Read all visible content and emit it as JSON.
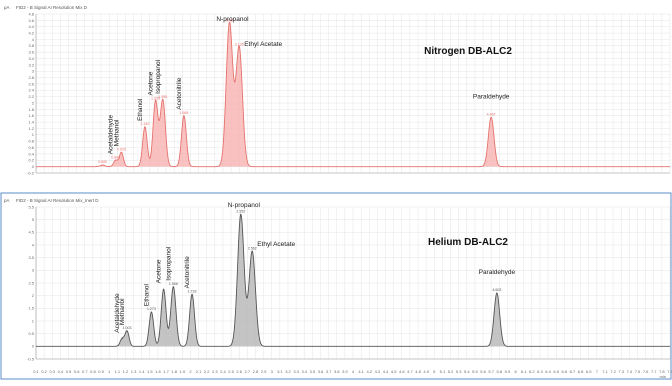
{
  "chart_data": [
    {
      "type": "line",
      "title": "Nitrogen DB-ALC2",
      "header": "FID2 - B Signal AI Resolution Mix D",
      "unit_label": "pA",
      "color": "#e6726e",
      "fill": "#f7b3b1",
      "xlim": [
        0.1,
        7.9
      ],
      "ylim": [
        -0.2,
        4.8
      ],
      "yticks": [
        "-0.2",
        "0",
        "0.2",
        "0.4",
        "0.6",
        "0.8",
        "1",
        "1.2",
        "1.4",
        "1.6",
        "1.8",
        "2",
        "2.2",
        "2.4",
        "2.6",
        "2.8",
        "3",
        "3.2",
        "3.4",
        "3.6",
        "3.8",
        "4",
        "4.2",
        "4.4",
        "4.6",
        "4.8"
      ],
      "peaks": [
        {
          "name": "",
          "rt": 0.92,
          "height": 0.05,
          "width": 0.03,
          "value_label": "0.600"
        },
        {
          "name": "Acetaldehyde",
          "rt": 1.08,
          "height": 0.2,
          "width": 0.025,
          "value_label": "0.849"
        },
        {
          "name": "Methanol",
          "rt": 1.15,
          "height": 0.45,
          "width": 0.025,
          "value_label": "0.929"
        },
        {
          "name": "Ethanol",
          "rt": 1.44,
          "height": 1.25,
          "width": 0.028,
          "value_label": "1.142"
        },
        {
          "name": "Acetone",
          "rt": 1.57,
          "height": 2.05,
          "width": 0.03,
          "value_label": "1.295"
        },
        {
          "name": "Isopropanol",
          "rt": 1.66,
          "height": 2.1,
          "width": 0.032,
          "value_label": "1.355"
        },
        {
          "name": "Acetonitrile",
          "rt": 1.92,
          "height": 1.6,
          "width": 0.03,
          "value_label": "1.565"
        },
        {
          "name": "N-propanol",
          "rt": 2.48,
          "height": 4.5,
          "width": 0.04,
          "value_label": "2.036"
        },
        {
          "name": "Ethyl Acetate",
          "rt": 2.6,
          "height": 3.75,
          "width": 0.04,
          "value_label": "2.135"
        },
        {
          "name": "Paraldehyde",
          "rt": 5.7,
          "height": 1.55,
          "width": 0.035,
          "value_label": "4.467"
        }
      ]
    },
    {
      "type": "line",
      "title": "Helium DB-ALC2",
      "header": "FID2 - B Signal AI Resolution Mix_Inert D",
      "unit_label": "pA",
      "color": "#555555",
      "fill": "#b5b5b5",
      "xlim": [
        0.1,
        7.9
      ],
      "ylim": [
        -0.5,
        5.5
      ],
      "yticks": [
        "-0.5",
        "0",
        "0.5",
        "1",
        "1.5",
        "2",
        "2.5",
        "3",
        "3.5",
        "4",
        "4.5",
        "5",
        "5.5"
      ],
      "peaks": [
        {
          "name": "Acetaldehyde",
          "rt": 1.16,
          "height": 0.3,
          "width": 0.025,
          "value_label": ""
        },
        {
          "name": "Methanol",
          "rt": 1.22,
          "height": 0.6,
          "width": 0.025,
          "value_label": "1.003"
        },
        {
          "name": "Ethanol",
          "rt": 1.52,
          "height": 1.35,
          "width": 0.028,
          "value_label": "1.273"
        },
        {
          "name": "Acetone",
          "rt": 1.67,
          "height": 2.25,
          "width": 0.03,
          "value_label": ""
        },
        {
          "name": "Isopropanol",
          "rt": 1.79,
          "height": 2.35,
          "width": 0.032,
          "value_label": "1.506"
        },
        {
          "name": "Acetonitrile",
          "rt": 2.02,
          "height": 2.05,
          "width": 0.03,
          "value_label": "1.733"
        },
        {
          "name": "N-propanol",
          "rt": 2.62,
          "height": 5.2,
          "width": 0.04,
          "value_label": "2.352"
        },
        {
          "name": "Ethyl Acetate",
          "rt": 2.76,
          "height": 3.75,
          "width": 0.04,
          "value_label": "2.562"
        },
        {
          "name": "Paraldehyde",
          "rt": 5.77,
          "height": 2.1,
          "width": 0.035,
          "value_label": "4.603"
        }
      ]
    }
  ],
  "x_axis": {
    "unit_label": "min",
    "ticks": [
      "0.1",
      "0.2",
      "0.3",
      "0.4",
      "0.5",
      "0.6",
      "0.7",
      "0.8",
      "0.9",
      "1",
      "1.1",
      "1.2",
      "1.3",
      "1.4",
      "1.5",
      "1.6",
      "1.7",
      "1.8",
      "1.9",
      "2",
      "2.1",
      "2.2",
      "2.3",
      "2.4",
      "2.5",
      "2.6",
      "2.7",
      "2.8",
      "2.9",
      "3",
      "3.1",
      "3.2",
      "3.3",
      "3.4",
      "3.5",
      "3.6",
      "3.7",
      "3.8",
      "3.9",
      "4",
      "4.1",
      "4.2",
      "4.3",
      "4.4",
      "4.5",
      "4.6",
      "4.7",
      "4.8",
      "4.9",
      "5",
      "5.1",
      "5.2",
      "5.3",
      "5.4",
      "5.5",
      "5.6",
      "5.7",
      "5.8",
      "5.9",
      "6",
      "6.1",
      "6.2",
      "6.3",
      "6.4",
      "6.5",
      "6.6",
      "6.7",
      "6.8",
      "6.9",
      "7",
      "7.1",
      "7.2",
      "7.3",
      "7.4",
      "7.5",
      "7.6",
      "7.7",
      "7.8",
      "7.9"
    ]
  },
  "frame_color": "#5b8cc7"
}
